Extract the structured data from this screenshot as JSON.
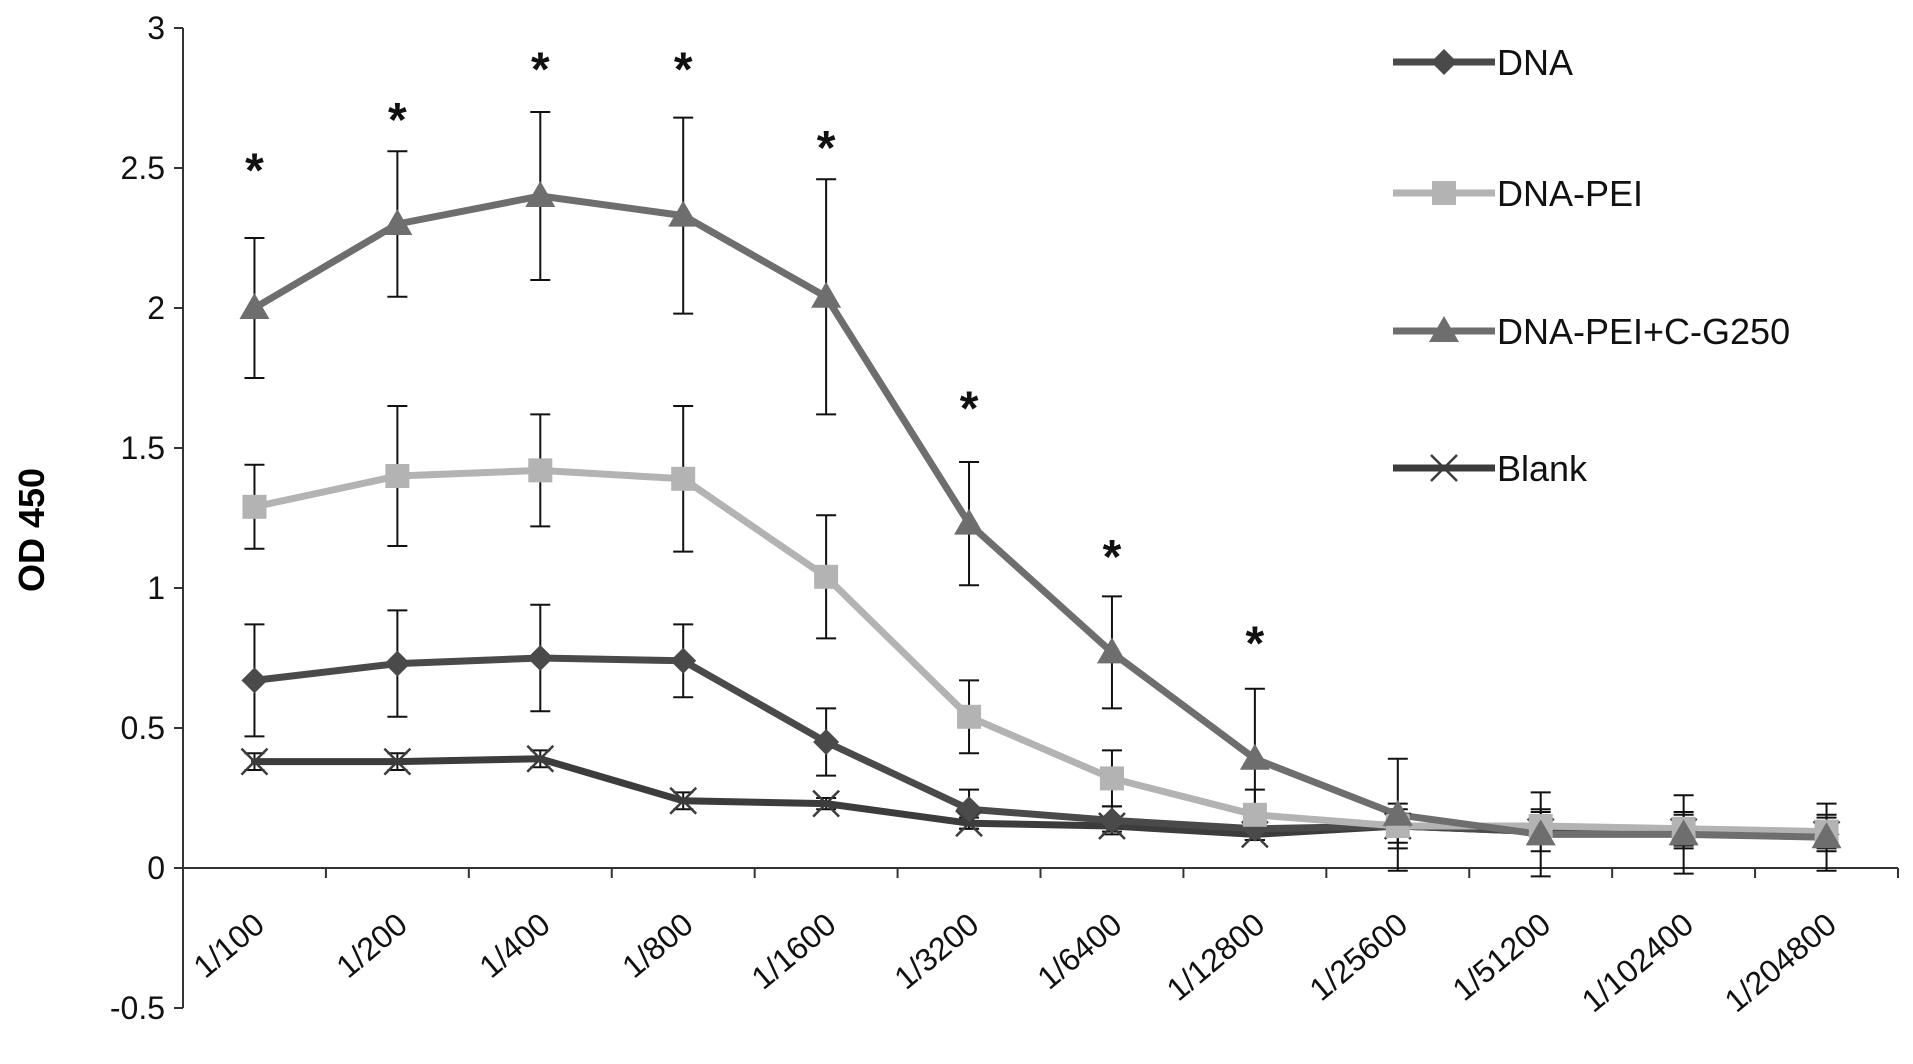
{
  "chart_data": {
    "type": "line",
    "title": "",
    "xlabel": "",
    "ylabel": "OD 450",
    "ylim": [
      -0.5,
      3
    ],
    "yticks": [
      -0.5,
      0,
      0.5,
      1,
      1.5,
      2,
      2.5,
      3
    ],
    "ytick_labels": [
      "-0.5",
      "0",
      "0.5",
      "1",
      "1.5",
      "2",
      "2.5",
      "3"
    ],
    "categories": [
      "1/100",
      "1/200",
      "1/400",
      "1/800",
      "1/1600",
      "1/3200",
      "1/6400",
      "1/12800",
      "1/25600",
      "1/51200",
      "1/102400",
      "1/204800"
    ],
    "grid": false,
    "legend_position": "top-right",
    "series": [
      {
        "name": "DNA",
        "marker": "diamond",
        "color": "#4a4a4a",
        "values": [
          0.67,
          0.73,
          0.75,
          0.74,
          0.45,
          0.21,
          0.17,
          0.14,
          0.15,
          0.13,
          0.13,
          0.12
        ],
        "errors": [
          0.2,
          0.19,
          0.19,
          0.13,
          0.12,
          0.07,
          0.05,
          0.04,
          0.08,
          0.07,
          0.06,
          0.06
        ]
      },
      {
        "name": "DNA-PEI",
        "marker": "square",
        "color": "#b3b3b3",
        "values": [
          1.29,
          1.4,
          1.42,
          1.39,
          1.04,
          0.54,
          0.32,
          0.19,
          0.15,
          0.15,
          0.14,
          0.13
        ],
        "errors": [
          0.15,
          0.25,
          0.2,
          0.26,
          0.22,
          0.13,
          0.1,
          0.09,
          0.06,
          0.06,
          0.06,
          0.06
        ]
      },
      {
        "name": "DNA-PEI+C-G250",
        "marker": "triangle",
        "color": "#6e6e6e",
        "values": [
          2.0,
          2.3,
          2.4,
          2.33,
          2.04,
          1.23,
          0.77,
          0.39,
          0.19,
          0.12,
          0.12,
          0.11
        ],
        "errors": [
          0.25,
          0.26,
          0.3,
          0.35,
          0.42,
          0.22,
          0.2,
          0.25,
          0.2,
          0.15,
          0.14,
          0.12
        ]
      },
      {
        "name": "Blank",
        "marker": "x",
        "color": "#3c3c3c",
        "values": [
          0.38,
          0.38,
          0.39,
          0.24,
          0.23,
          0.16,
          0.15,
          0.12,
          0.15,
          0.13,
          0.13,
          0.12
        ],
        "errors": [
          0.03,
          0.03,
          0.03,
          0.03,
          0.02,
          0.02,
          0.02,
          0.02,
          0.03,
          0.03,
          0.03,
          0.03
        ]
      }
    ],
    "annotations": {
      "symbol": "*",
      "categories": [
        "1/100",
        "1/200",
        "1/400",
        "1/800",
        "1/1600",
        "1/3200",
        "1/6400",
        "1/12800"
      ],
      "values": [
        2.52,
        2.7,
        2.88,
        2.88,
        2.6,
        1.67,
        1.14,
        0.83
      ]
    }
  }
}
